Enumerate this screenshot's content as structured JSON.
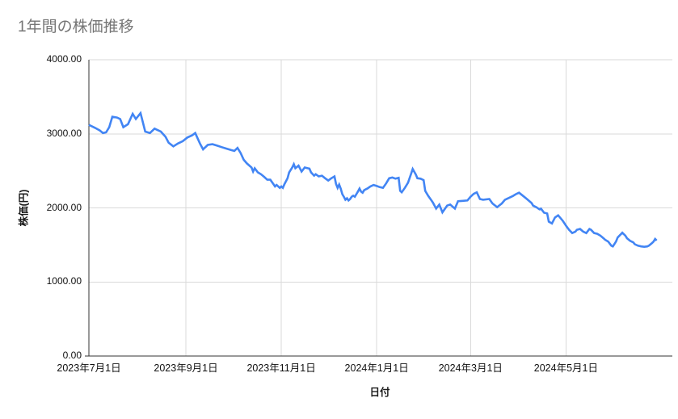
{
  "page": {
    "background": "#ffffff"
  },
  "chart_data": {
    "type": "line",
    "title": "1年間の株価推移",
    "xlabel": "日付",
    "ylabel": "株価(円)",
    "ylim": [
      0,
      4000
    ],
    "x_domain": [
      "2023-07-01",
      "2024-07-08"
    ],
    "grid": true,
    "legend": "none",
    "colors": {
      "line": "#4285f4",
      "title": "#757575",
      "axis": "#333333",
      "gridline": "#dadada",
      "tick_label": "#111111",
      "background": "#ffffff"
    },
    "y_ticks": [
      {
        "value": 0,
        "label": "0.00"
      },
      {
        "value": 1000,
        "label": "1000.00"
      },
      {
        "value": 2000,
        "label": "2000.00"
      },
      {
        "value": 3000,
        "label": "3000.00"
      },
      {
        "value": 4000,
        "label": "4000.00"
      }
    ],
    "x_ticks": [
      {
        "date": "2023-07-01",
        "label": "2023年7月1日"
      },
      {
        "date": "2023-09-01",
        "label": "2023年9月1日"
      },
      {
        "date": "2023-11-01",
        "label": "2023年11月1日"
      },
      {
        "date": "2024-01-01",
        "label": "2024年1月1日"
      },
      {
        "date": "2024-03-01",
        "label": "2024年3月1日"
      },
      {
        "date": "2024-05-01",
        "label": "2024年5月1日"
      }
    ],
    "series": [
      {
        "name": "株価",
        "points": [
          [
            "2023-07-01",
            3120
          ],
          [
            "2023-07-03",
            3100
          ],
          [
            "2023-07-05",
            3080
          ],
          [
            "2023-07-08",
            3045
          ],
          [
            "2023-07-10",
            3010
          ],
          [
            "2023-07-12",
            3020
          ],
          [
            "2023-07-14",
            3090
          ],
          [
            "2023-07-16",
            3230
          ],
          [
            "2023-07-19",
            3220
          ],
          [
            "2023-07-21",
            3200
          ],
          [
            "2023-07-23",
            3090
          ],
          [
            "2023-07-26",
            3130
          ],
          [
            "2023-07-29",
            3270
          ],
          [
            "2023-07-31",
            3200
          ],
          [
            "2023-08-03",
            3280
          ],
          [
            "2023-08-06",
            3030
          ],
          [
            "2023-08-09",
            3010
          ],
          [
            "2023-08-12",
            3070
          ],
          [
            "2023-08-14",
            3050
          ],
          [
            "2023-08-16",
            3030
          ],
          [
            "2023-08-19",
            2960
          ],
          [
            "2023-08-21",
            2880
          ],
          [
            "2023-08-24",
            2830
          ],
          [
            "2023-08-27",
            2870
          ],
          [
            "2023-08-30",
            2900
          ],
          [
            "2023-09-02",
            2950
          ],
          [
            "2023-09-05",
            2980
          ],
          [
            "2023-09-07",
            3010
          ],
          [
            "2023-09-10",
            2870
          ],
          [
            "2023-09-12",
            2790
          ],
          [
            "2023-09-15",
            2850
          ],
          [
            "2023-09-18",
            2860
          ],
          [
            "2023-09-21",
            2840
          ],
          [
            "2023-09-24",
            2820
          ],
          [
            "2023-09-27",
            2800
          ],
          [
            "2023-09-30",
            2780
          ],
          [
            "2023-10-02",
            2770
          ],
          [
            "2023-10-04",
            2810
          ],
          [
            "2023-10-06",
            2740
          ],
          [
            "2023-10-08",
            2650
          ],
          [
            "2023-10-10",
            2600
          ],
          [
            "2023-10-13",
            2545
          ],
          [
            "2023-10-14",
            2490
          ],
          [
            "2023-10-15",
            2535
          ],
          [
            "2023-10-17",
            2480
          ],
          [
            "2023-10-19",
            2455
          ],
          [
            "2023-10-21",
            2420
          ],
          [
            "2023-10-23",
            2380
          ],
          [
            "2023-10-25",
            2380
          ],
          [
            "2023-10-27",
            2320
          ],
          [
            "2023-10-28",
            2290
          ],
          [
            "2023-10-29",
            2310
          ],
          [
            "2023-10-31",
            2270
          ],
          [
            "2023-11-01",
            2290
          ],
          [
            "2023-11-02",
            2270
          ],
          [
            "2023-11-03",
            2320
          ],
          [
            "2023-11-05",
            2400
          ],
          [
            "2023-11-06",
            2480
          ],
          [
            "2023-11-08",
            2545
          ],
          [
            "2023-11-09",
            2590
          ],
          [
            "2023-11-10",
            2535
          ],
          [
            "2023-11-12",
            2570
          ],
          [
            "2023-11-14",
            2490
          ],
          [
            "2023-11-16",
            2545
          ],
          [
            "2023-11-19",
            2530
          ],
          [
            "2023-11-20",
            2480
          ],
          [
            "2023-11-22",
            2435
          ],
          [
            "2023-11-23",
            2455
          ],
          [
            "2023-11-25",
            2425
          ],
          [
            "2023-11-27",
            2435
          ],
          [
            "2023-11-29",
            2400
          ],
          [
            "2023-12-01",
            2370
          ],
          [
            "2023-12-03",
            2400
          ],
          [
            "2023-12-05",
            2425
          ],
          [
            "2023-12-06",
            2325
          ],
          [
            "2023-12-07",
            2270
          ],
          [
            "2023-12-08",
            2315
          ],
          [
            "2023-12-09",
            2260
          ],
          [
            "2023-12-10",
            2185
          ],
          [
            "2023-12-11",
            2150
          ],
          [
            "2023-12-12",
            2110
          ],
          [
            "2023-12-13",
            2130
          ],
          [
            "2023-12-14",
            2100
          ],
          [
            "2023-12-15",
            2120
          ],
          [
            "2023-12-16",
            2150
          ],
          [
            "2023-12-17",
            2165
          ],
          [
            "2023-12-18",
            2150
          ],
          [
            "2023-12-19",
            2185
          ],
          [
            "2023-12-20",
            2220
          ],
          [
            "2023-12-21",
            2260
          ],
          [
            "2023-12-22",
            2220
          ],
          [
            "2023-12-23",
            2205
          ],
          [
            "2023-12-24",
            2240
          ],
          [
            "2023-12-26",
            2260
          ],
          [
            "2023-12-28",
            2290
          ],
          [
            "2023-12-30",
            2310
          ],
          [
            "2024-01-01",
            2295
          ],
          [
            "2024-01-03",
            2280
          ],
          [
            "2024-01-05",
            2270
          ],
          [
            "2024-01-07",
            2330
          ],
          [
            "2024-01-09",
            2400
          ],
          [
            "2024-01-11",
            2410
          ],
          [
            "2024-01-13",
            2395
          ],
          [
            "2024-01-15",
            2405
          ],
          [
            "2024-01-16",
            2230
          ],
          [
            "2024-01-17",
            2210
          ],
          [
            "2024-01-19",
            2270
          ],
          [
            "2024-01-21",
            2340
          ],
          [
            "2024-01-23",
            2460
          ],
          [
            "2024-01-24",
            2525
          ],
          [
            "2024-01-26",
            2450
          ],
          [
            "2024-01-27",
            2400
          ],
          [
            "2024-01-29",
            2395
          ],
          [
            "2024-01-31",
            2375
          ],
          [
            "2024-02-01",
            2230
          ],
          [
            "2024-02-03",
            2160
          ],
          [
            "2024-02-05",
            2100
          ],
          [
            "2024-02-06",
            2070
          ],
          [
            "2024-02-08",
            1990
          ],
          [
            "2024-02-10",
            2045
          ],
          [
            "2024-02-12",
            1940
          ],
          [
            "2024-02-15",
            2030
          ],
          [
            "2024-02-17",
            2045
          ],
          [
            "2024-02-20",
            1990
          ],
          [
            "2024-02-22",
            2090
          ],
          [
            "2024-02-25",
            2095
          ],
          [
            "2024-02-28",
            2100
          ],
          [
            "2024-03-01",
            2150
          ],
          [
            "2024-03-03",
            2190
          ],
          [
            "2024-03-05",
            2210
          ],
          [
            "2024-03-07",
            2120
          ],
          [
            "2024-03-09",
            2110
          ],
          [
            "2024-03-13",
            2120
          ],
          [
            "2024-03-15",
            2060
          ],
          [
            "2024-03-18",
            2010
          ],
          [
            "2024-03-21",
            2060
          ],
          [
            "2024-03-23",
            2110
          ],
          [
            "2024-03-26",
            2140
          ],
          [
            "2024-03-28",
            2160
          ],
          [
            "2024-03-30",
            2185
          ],
          [
            "2024-04-01",
            2205
          ],
          [
            "2024-04-04",
            2155
          ],
          [
            "2024-04-06",
            2120
          ],
          [
            "2024-04-09",
            2065
          ],
          [
            "2024-04-10",
            2030
          ],
          [
            "2024-04-12",
            2010
          ],
          [
            "2024-04-14",
            1980
          ],
          [
            "2024-04-15",
            1990
          ],
          [
            "2024-04-17",
            1935
          ],
          [
            "2024-04-19",
            1925
          ],
          [
            "2024-04-20",
            1815
          ],
          [
            "2024-04-22",
            1790
          ],
          [
            "2024-04-24",
            1870
          ],
          [
            "2024-04-26",
            1900
          ],
          [
            "2024-04-29",
            1825
          ],
          [
            "2024-05-01",
            1760
          ],
          [
            "2024-05-03",
            1705
          ],
          [
            "2024-05-05",
            1660
          ],
          [
            "2024-05-07",
            1680
          ],
          [
            "2024-05-08",
            1705
          ],
          [
            "2024-05-10",
            1715
          ],
          [
            "2024-05-12",
            1680
          ],
          [
            "2024-05-14",
            1660
          ],
          [
            "2024-05-16",
            1715
          ],
          [
            "2024-05-17",
            1705
          ],
          [
            "2024-05-19",
            1660
          ],
          [
            "2024-05-21",
            1650
          ],
          [
            "2024-05-23",
            1625
          ],
          [
            "2024-05-25",
            1590
          ],
          [
            "2024-05-26",
            1570
          ],
          [
            "2024-05-28",
            1545
          ],
          [
            "2024-05-30",
            1490
          ],
          [
            "2024-05-31",
            1480
          ],
          [
            "2024-06-02",
            1545
          ],
          [
            "2024-06-03",
            1600
          ],
          [
            "2024-06-06",
            1665
          ],
          [
            "2024-06-08",
            1625
          ],
          [
            "2024-06-09",
            1590
          ],
          [
            "2024-06-11",
            1555
          ],
          [
            "2024-06-13",
            1535
          ],
          [
            "2024-06-14",
            1510
          ],
          [
            "2024-06-16",
            1490
          ],
          [
            "2024-06-18",
            1480
          ],
          [
            "2024-06-20",
            1475
          ],
          [
            "2024-06-22",
            1480
          ],
          [
            "2024-06-23",
            1490
          ],
          [
            "2024-06-25",
            1525
          ],
          [
            "2024-06-26",
            1545
          ],
          [
            "2024-06-27",
            1580
          ],
          [
            "2024-06-28",
            1560
          ]
        ]
      }
    ]
  }
}
